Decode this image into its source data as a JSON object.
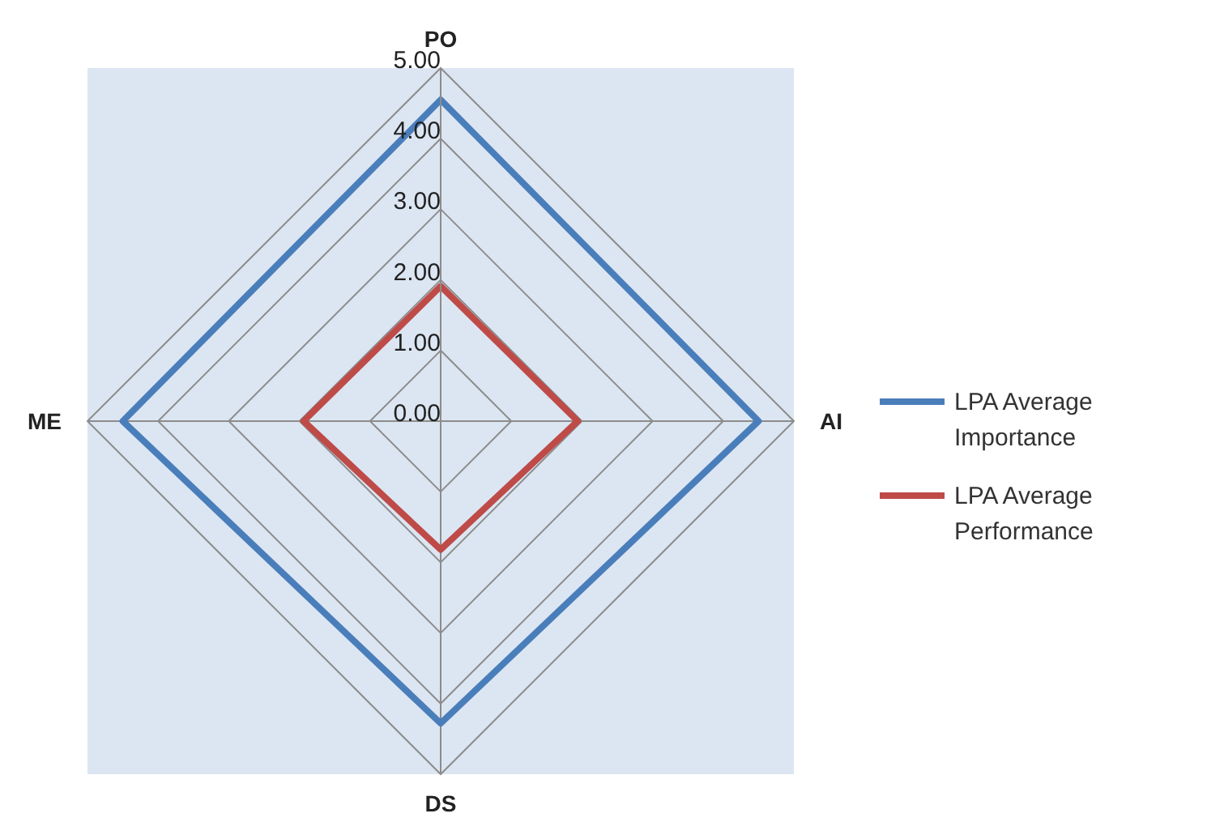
{
  "chart_data": {
    "type": "radar",
    "categories": [
      "PO",
      "AI",
      "DS",
      "ME"
    ],
    "series": [
      {
        "name": "LPA Average Importance",
        "color": "#4a7ebb",
        "values": [
          4.55,
          4.5,
          4.28,
          4.5
        ]
      },
      {
        "name": "LPA Average Performance",
        "color": "#be4b48",
        "values": [
          1.91,
          1.94,
          1.82,
          1.94
        ]
      }
    ],
    "ylim": [
      0,
      5
    ],
    "yticks": [
      {
        "value": 0,
        "label": "0.00"
      },
      {
        "value": 1,
        "label": "1.00"
      },
      {
        "value": 2,
        "label": "2.00"
      },
      {
        "value": 3,
        "label": "3.00"
      },
      {
        "value": 4,
        "label": "4.00"
      },
      {
        "value": 5,
        "label": "5.00"
      }
    ],
    "grid": true,
    "legend": "right",
    "marker": "none"
  }
}
